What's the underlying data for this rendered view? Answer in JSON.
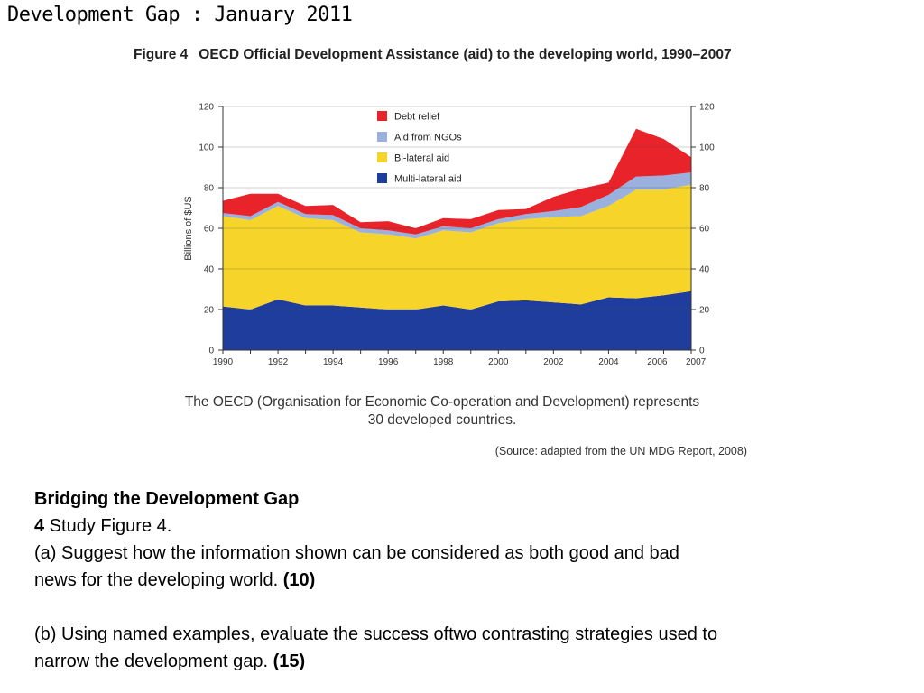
{
  "slide": {
    "title": "Development Gap : January 2011"
  },
  "figure": {
    "number": "Figure 4",
    "title": "OECD Official Development Assistance (aid) to the developing world, 1990–2007",
    "caption_line1": "The OECD (Organisation for Economic Co-operation and Development) represents",
    "caption_line2": "30 developed countries.",
    "source": "(Source: adapted from the UN MDG Report, 2008)"
  },
  "question": {
    "heading": "Bridging the Development Gap",
    "number": "4",
    "intro": " Study Figure 4.",
    "part_a": " (a) Suggest how the information shown can be considered as both good and bad",
    "part_a_cont": "news for the developing world. ",
    "part_a_marks": "(10)",
    "part_b": " (b) Using named examples, evaluate the success oftwo contrasting strategies used to",
    "part_b_cont": "narrow the development gap.  ",
    "part_b_marks": "(15)"
  },
  "chart_data": {
    "type": "area",
    "stacked": true,
    "ylabel": "Billions of $US",
    "xlabel": "",
    "ylim": [
      0,
      120
    ],
    "yticks": [
      0,
      20,
      40,
      60,
      80,
      100,
      120
    ],
    "xticks": [
      1990,
      1992,
      1994,
      1996,
      1998,
      2000,
      2002,
      2004,
      2006,
      2007
    ],
    "x": [
      1990,
      1991,
      1992,
      1993,
      1994,
      1995,
      1996,
      1997,
      1998,
      1999,
      2000,
      2001,
      2002,
      2003,
      2004,
      2005,
      2006,
      2007
    ],
    "legend_position": "top-center",
    "series": [
      {
        "name": "Multi-lateral aid",
        "color": "#1f3d9c",
        "values": [
          21.5,
          20,
          25,
          22,
          22,
          21,
          20,
          20,
          22,
          20,
          24,
          24.5,
          23.5,
          22.5,
          26,
          25.5,
          27,
          29
        ]
      },
      {
        "name": "Bi-lateral aid",
        "color": "#f7d42a",
        "values": [
          44.5,
          44,
          46,
          43,
          42,
          37,
          37,
          35,
          37,
          38,
          38.5,
          40,
          42,
          43.5,
          45,
          53.5,
          52,
          52.5
        ]
      },
      {
        "name": "Aid from NGOs",
        "color": "#9ab0dd",
        "values": [
          1.5,
          2,
          2,
          2,
          2.5,
          2,
          2,
          2,
          2,
          2,
          2,
          2.5,
          3,
          4.5,
          5.5,
          6.5,
          7,
          6
        ]
      },
      {
        "name": "Debt relief",
        "color": "#e8232a",
        "values": [
          6,
          11,
          4,
          4,
          5,
          3,
          4.5,
          3,
          4,
          4.5,
          4.5,
          2.5,
          7,
          9,
          6,
          23.5,
          18,
          7.5
        ]
      }
    ],
    "legend_order": [
      "Debt relief",
      "Aid from NGOs",
      "Bi-lateral aid",
      "Multi-lateral aid"
    ]
  }
}
